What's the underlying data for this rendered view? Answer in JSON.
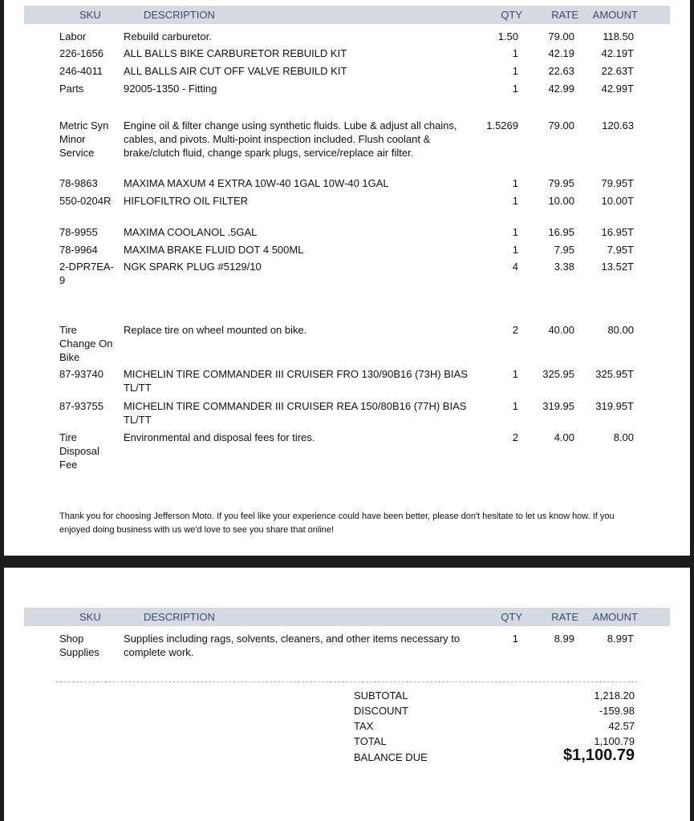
{
  "columns": {
    "sku": "SKU",
    "description": "DESCRIPTION",
    "qty": "QTY",
    "rate": "RATE",
    "amount": "AMOUNT"
  },
  "page1_items": [
    {
      "sku": "Labor",
      "description": "Rebuild carburetor.",
      "qty": "1.50",
      "rate": "79.00",
      "amount": "118.50"
    },
    {
      "sku": "226-1656",
      "description": "ALL BALLS BIKE CARBURETOR REBUILD KIT",
      "qty": "1",
      "rate": "42.19",
      "amount": "42.19T"
    },
    {
      "sku": "246-4011",
      "description": "ALL BALLS AIR CUT OFF VALVE REBUILD KIT",
      "qty": "1",
      "rate": "22.63",
      "amount": "22.63T"
    },
    {
      "sku": "Parts",
      "description": "92005-1350 - Fitting",
      "qty": "1",
      "rate": "42.99",
      "amount": "42.99T"
    },
    {
      "sku": "Metric Syn Minor Service",
      "description": "Engine oil & filter change using synthetic fluids. Lube & adjust all chains, cables, and pivots. Multi-point inspection included. Flush coolant & brake/clutch fluid, change spark plugs, service/replace air filter.",
      "qty": "1.5269",
      "rate": "79.00",
      "amount": "120.63"
    },
    {
      "sku": "78-9863",
      "description": "MAXIMA MAXUM 4 EXTRA 10W-40 1GAL 10W-40 1GAL",
      "qty": "1",
      "rate": "79.95",
      "amount": "79.95T"
    },
    {
      "sku": "550-0204R",
      "description": "HIFLOFILTRO OIL FILTER",
      "qty": "1",
      "rate": "10.00",
      "amount": "10.00T"
    },
    {
      "sku": "78-9955",
      "description": "MAXIMA COOLANOL .5GAL",
      "qty": "1",
      "rate": "16.95",
      "amount": "16.95T"
    },
    {
      "sku": "78-9964",
      "description": "MAXIMA BRAKE FLUID DOT 4 500ML",
      "qty": "1",
      "rate": "7.95",
      "amount": "7.95T"
    },
    {
      "sku": "2-DPR7EA-9",
      "description": "NGK SPARK PLUG #5129/10",
      "qty": "4",
      "rate": "3.38",
      "amount": "13.52T"
    },
    {
      "sku": "Tire Change On Bike",
      "description": "Replace tire on wheel mounted on bike.",
      "qty": "2",
      "rate": "40.00",
      "amount": "80.00"
    },
    {
      "sku": "87-93740",
      "description": "MICHELIN TIRE COMMANDER III CRUISER FRO 130/90B16 (73H) BIAS TL/TT",
      "qty": "1",
      "rate": "325.95",
      "amount": "325.95T"
    },
    {
      "sku": "87-93755",
      "description": "MICHELIN TIRE COMMANDER III CRUISER REA 150/80B16 (77H) BIAS TL/TT",
      "qty": "1",
      "rate": "319.95",
      "amount": "319.95T"
    },
    {
      "sku": "Tire Disposal Fee",
      "description": "Environmental and disposal fees for tires.",
      "qty": "2",
      "rate": "4.00",
      "amount": "8.00"
    }
  ],
  "note": "Thank you for choosing Jefferson Moto. If you feel like your experience could have been better, please don't hesitate to let us know how. If you enjoyed doing business with us we'd love to see you share that online!",
  "page2_items": [
    {
      "sku": "Shop Supplies",
      "description": "Supplies including rags, solvents, cleaners, and other items necessary to complete work.",
      "qty": "1",
      "rate": "8.99",
      "amount": "8.99T"
    }
  ],
  "totals": {
    "subtotal_label": "SUBTOTAL",
    "subtotal": "1,218.20",
    "discount_label": "DISCOUNT",
    "discount": "-159.98",
    "tax_label": "TAX",
    "tax": "42.57",
    "total_label": "TOTAL",
    "total": "1,100.79",
    "balance_label": "BALANCE DUE",
    "balance": "$1,100.79"
  }
}
